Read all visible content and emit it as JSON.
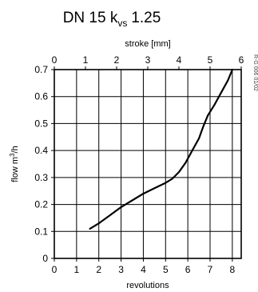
{
  "chart_data": {
    "type": "line",
    "title": {
      "prefix": "DN 15 k",
      "subscript": "vs",
      "suffix": "1.25"
    },
    "xlabel": "revolutions",
    "x2label": "stroke [mm]",
    "ylabel": {
      "base": "flow m",
      "sup": "3",
      "tail": "/h"
    },
    "side_code": "R-G 006 01/02",
    "xlim": [
      0,
      8.4
    ],
    "ylim": [
      0,
      0.7
    ],
    "x_ticks": [
      0,
      1,
      2,
      3,
      4,
      5,
      6,
      7,
      8
    ],
    "y_ticks": [
      0,
      0.1,
      0.2,
      0.3,
      0.4,
      0.5,
      0.6,
      0.7
    ],
    "x2_ticks": [
      0,
      1,
      2,
      3,
      4,
      5,
      6
    ],
    "x2_per_x": 0.7143,
    "x_tick_labels": [
      "0",
      "1",
      "2",
      "3",
      "4",
      "5",
      "6",
      "7",
      "8"
    ],
    "y_tick_labels": [
      "0",
      "0.1",
      "0.2",
      "0.3",
      "0.4",
      "0.5",
      "0.6",
      "0.7"
    ],
    "x2_tick_labels": [
      "0",
      "1",
      "2",
      "3",
      "4",
      "5",
      "6"
    ],
    "grid": true,
    "series": [
      {
        "x": [
          1.6,
          2.0,
          2.5,
          3.0,
          3.5,
          4.0,
          4.5,
          5.0,
          5.3,
          5.6,
          5.9,
          6.2,
          6.5,
          6.7,
          6.9,
          7.2,
          7.5,
          7.8,
          8.0
        ],
        "y": [
          0.11,
          0.13,
          0.16,
          0.19,
          0.215,
          0.24,
          0.26,
          0.28,
          0.295,
          0.32,
          0.355,
          0.4,
          0.445,
          0.49,
          0.53,
          0.57,
          0.615,
          0.66,
          0.7
        ],
        "color": "#000000"
      }
    ]
  }
}
